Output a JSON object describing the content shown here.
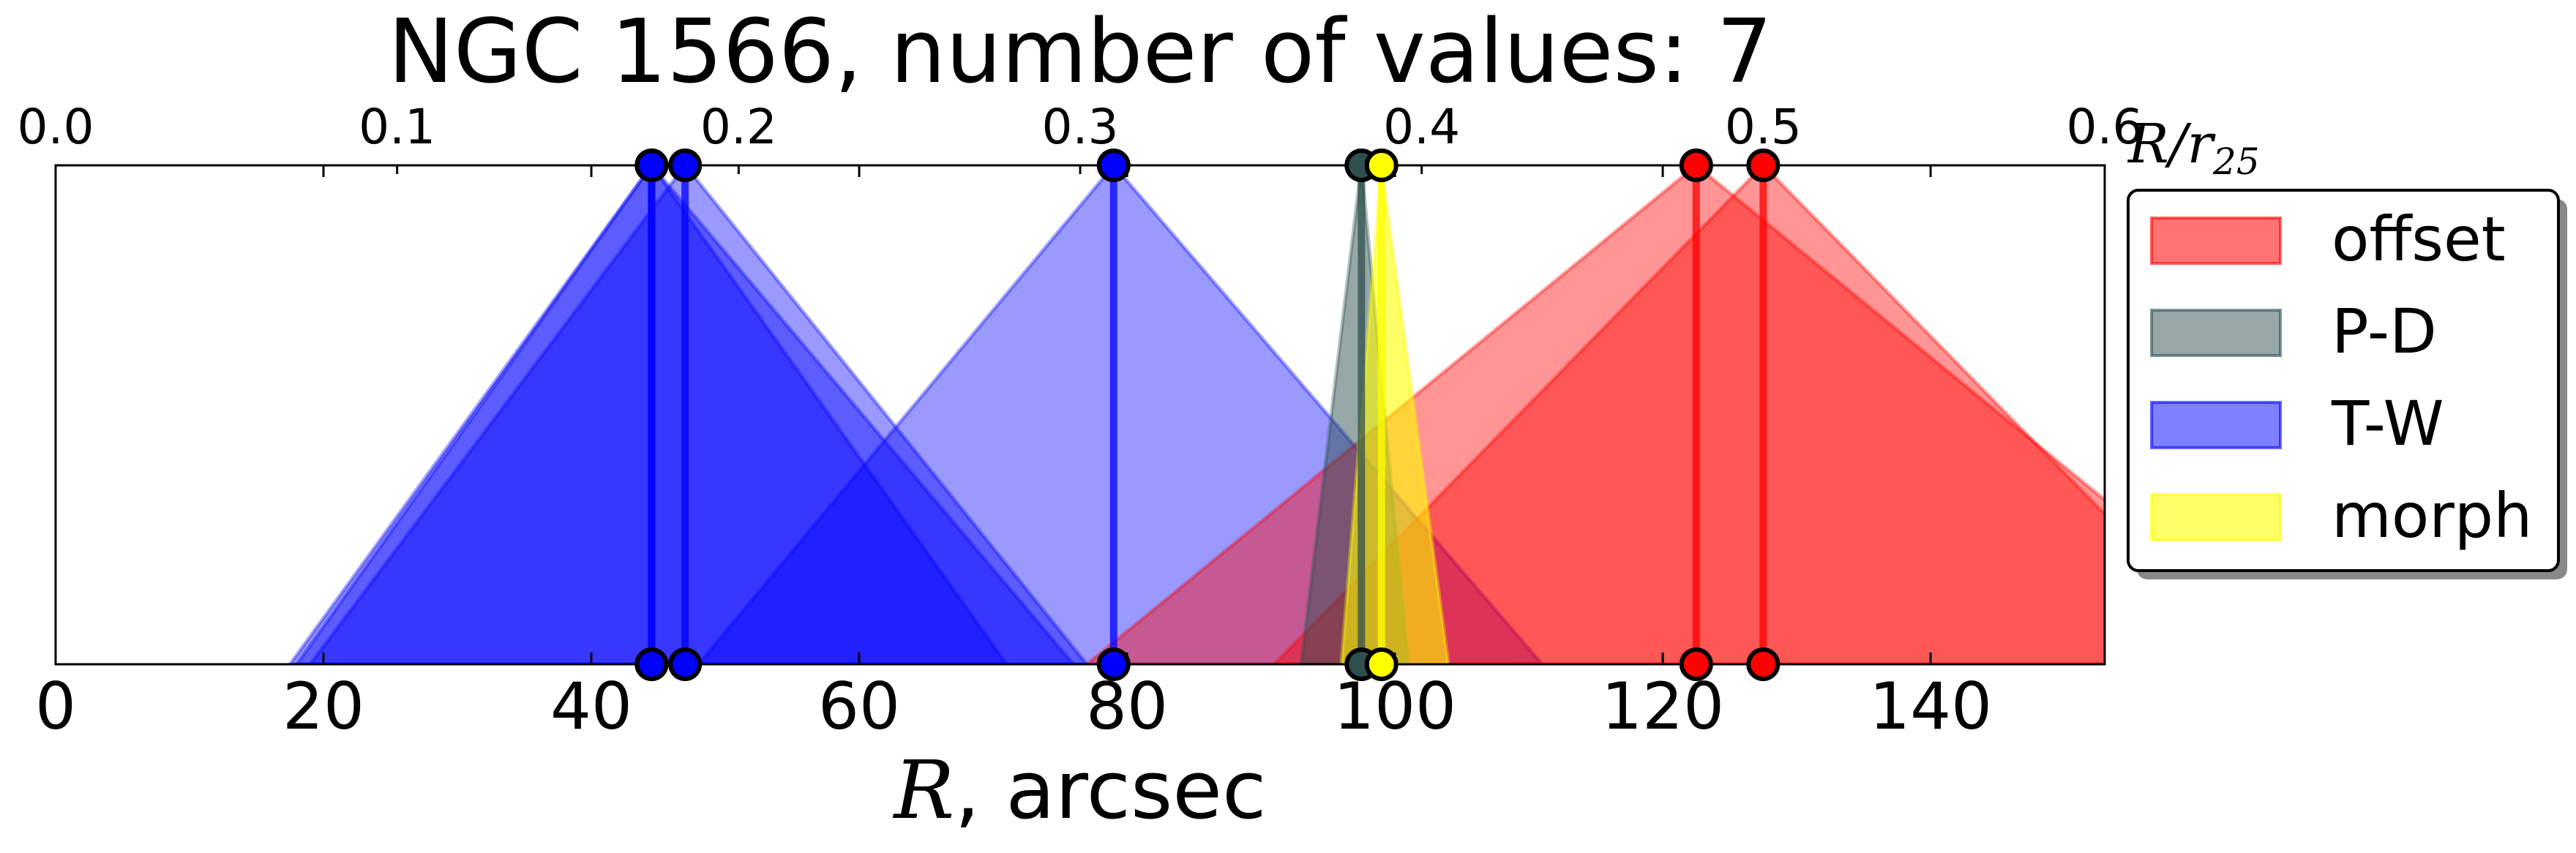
{
  "chart_data": {
    "type": "area",
    "title": "NGC 1566, number of values: 7",
    "xlabel_italic": "R",
    "xlabel_rest": ", arcsec",
    "top_axis_label": {
      "main": "R/r",
      "sub": "25"
    },
    "xlim": [
      0,
      153
    ],
    "top_xlim": [
      0.0,
      0.6
    ],
    "bottom_ticks": [
      "0",
      "20",
      "40",
      "60",
      "80",
      "100",
      "120",
      "140"
    ],
    "top_ticks": [
      "0.0",
      "0.1",
      "0.2",
      "0.3",
      "0.4",
      "0.5",
      "0.6"
    ],
    "grid": false,
    "legend_position": "right",
    "legend": [
      {
        "name": "offset",
        "color": "#ff0000"
      },
      {
        "name": "P-D",
        "color": "#2f4f4f"
      },
      {
        "name": "T-W",
        "color": "#0000ff"
      },
      {
        "name": "morph",
        "color": "#ffff00"
      }
    ],
    "series": [
      {
        "method": "T-W",
        "color": "#0000ff",
        "R": 44.5,
        "left": 18,
        "right": 71
      },
      {
        "method": "T-W",
        "color": "#0000ff",
        "R": 47.0,
        "left": 19,
        "right": 77
      },
      {
        "method": "T-W",
        "color": "#0000ff",
        "R": 44.5,
        "left": 17.5,
        "right": 76
      },
      {
        "method": "T-W",
        "color": "#0000ff",
        "R": 79.0,
        "left": 48,
        "right": 111
      },
      {
        "method": "offset",
        "color": "#ff0000",
        "R": 122.5,
        "left": 77,
        "right": 168
      },
      {
        "method": "offset",
        "color": "#ff0000",
        "R": 127.5,
        "left": 91,
        "right": 164
      },
      {
        "method": "P-D",
        "color": "#2f4f4f",
        "R": 97.5,
        "left": 93,
        "right": 101
      },
      {
        "method": "morph",
        "color": "#ffff00",
        "R": 99.0,
        "left": 96,
        "right": 104
      }
    ]
  }
}
